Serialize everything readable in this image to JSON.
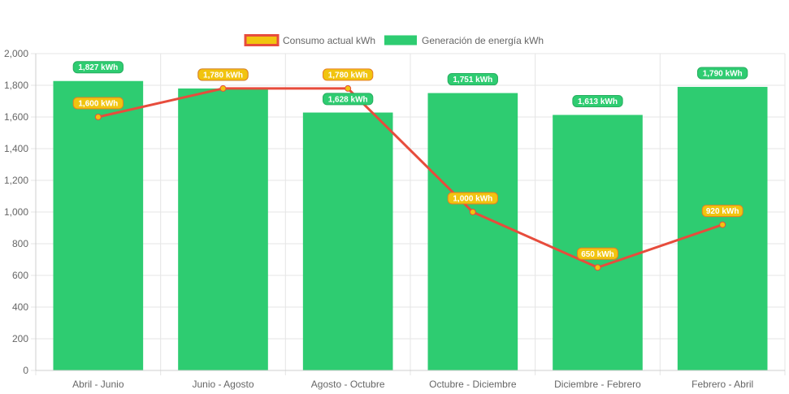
{
  "chart_data": {
    "type": "bar",
    "title": "",
    "xlabel": "",
    "ylabel": "",
    "ylim": [
      0,
      2000
    ],
    "yticks": [
      "0",
      "200",
      "400",
      "600",
      "800",
      "1,000",
      "1,200",
      "1,400",
      "1,600",
      "1,800",
      "2,000"
    ],
    "categories": [
      "Abril - Junio",
      "Junio - Agosto",
      "Agosto - Octubre",
      "Octubre - Diciembre",
      "Diciembre - Febrero",
      "Febrero - Abril"
    ],
    "legend_position": "top-center",
    "grid": true,
    "series": [
      {
        "name": "Consumo actual kWh",
        "type": "line",
        "color": "#E74C3C",
        "fill": "#F1C40F",
        "values": [
          1600,
          1780,
          1780,
          1000,
          650,
          920
        ],
        "labels": [
          "1,600 kWh",
          "1,780 kWh",
          "1,780 kWh",
          "1,000 kWh",
          "650 kWh",
          "920 kWh"
        ]
      },
      {
        "name": "Generación de energía kWh",
        "type": "bar",
        "color": "#2ECC71",
        "values": [
          1827,
          1780,
          1628,
          1751,
          1613,
          1790
        ],
        "labels": [
          "1,827 kWh",
          "1,780 kWh",
          "1,628 kWh",
          "1,751 kWh",
          "1,613 kWh",
          "1,790 kWh"
        ]
      }
    ]
  }
}
